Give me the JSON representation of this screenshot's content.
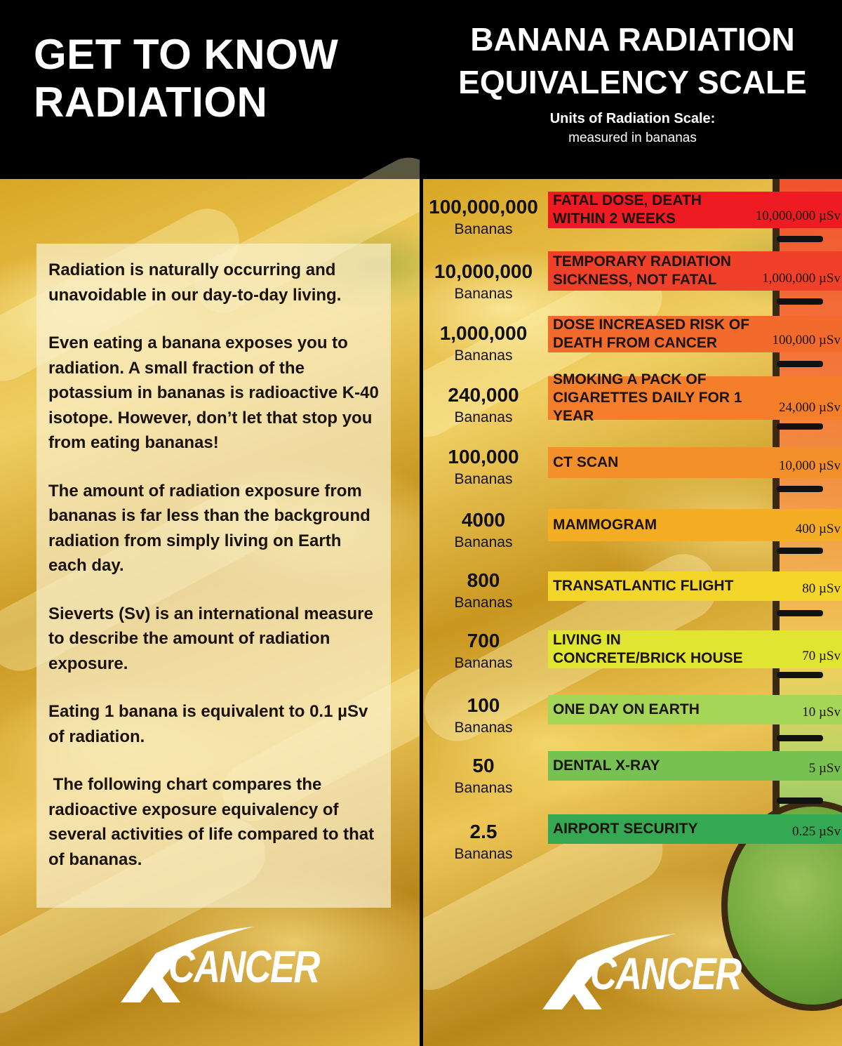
{
  "left_panel": {
    "title_line1": "GET TO KNOW",
    "title_line2": "RADIATION",
    "paragraphs": [
      "Radiation is naturally occurring and unavoidable in our day-to-day living.",
      "Even eating a banana exposes you to radiation. A small fraction of the potassium in bananas is radioactive K-40 isotope. However, don’t let that stop you from eating bananas!",
      "The amount of radiation exposure from bananas is far less than the background radiation from simply living on Earth each day.",
      "Sieverts (Sv) is an international measure to describe the amount of radiation exposure.",
      "Eating 1 banana is equivalent to 0.1 µSv of radiation.",
      " The following chart compares the radioactive exposure equivalency of several activities of life compared to that of bananas."
    ],
    "logo_text": "CANCER"
  },
  "right_panel": {
    "title_line1": "BANANA RADIATION",
    "title_line2": "EQUIVALENCY SCALE",
    "subtitle_bold": "Units of Radiation Scale:",
    "subtitle": "measured in bananas",
    "logo_text": "CANCER"
  },
  "chart_data": {
    "type": "table",
    "unit_label": "Bananas",
    "rows": [
      {
        "bananas": "100,000,000",
        "label": "FATAL DOSE, DEATH WITHIN 2 WEEKS",
        "dose": "10,000,000 µSv",
        "color": "#ee1b22"
      },
      {
        "bananas": "10,000,000",
        "label": "TEMPORARY RADIATION SICKNESS, NOT FATAL",
        "dose": "1,000,000 µSv",
        "color": "#f0402a"
      },
      {
        "bananas": "1,000,000",
        "label": "DOSE INCREASED RISK OF DEATH FROM CANCER",
        "dose": "100,000 µSv",
        "color": "#f26a2c"
      },
      {
        "bananas": "240,000",
        "label": "SMOKING A PACK OF CIGARETTES DAILY FOR 1 YEAR",
        "dose": "24,000 µSv",
        "color": "#f47e2a"
      },
      {
        "bananas": "100,000",
        "label": "CT SCAN",
        "dose": "10,000 µSv",
        "color": "#f4902a"
      },
      {
        "bananas": "4000",
        "label": "MAMMOGRAM",
        "dose": "400 µSv",
        "color": "#f5ad24"
      },
      {
        "bananas": "800",
        "label": "TRANSATLANTIC FLIGHT",
        "dose": "80 µSv",
        "color": "#f3d629"
      },
      {
        "bananas": "700",
        "label": "LIVING IN CONCRETE/BRICK HOUSE",
        "dose": "70 µSv",
        "color": "#dfe531"
      },
      {
        "bananas": "100",
        "label": "ONE DAY ON EARTH",
        "dose": "10 µSv",
        "color": "#a6d657"
      },
      {
        "bananas": "50",
        "label": "DENTAL X-RAY",
        "dose": "5 µSv",
        "color": "#76c152"
      },
      {
        "bananas": "2.5",
        "label": "AIRPORT SECURITY",
        "dose": "0.25 µSv",
        "color": "#34a853"
      }
    ]
  }
}
